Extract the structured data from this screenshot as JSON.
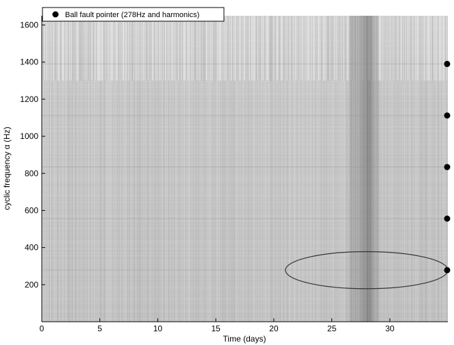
{
  "chart_data": {
    "type": "heatmap",
    "xlabel": "Time (days)",
    "ylabel": "cyclic frequency α (Hz)",
    "xlim": [
      0,
      35
    ],
    "ylim": [
      0,
      1650
    ],
    "x_ticks": [
      0,
      5,
      10,
      15,
      20,
      25,
      30
    ],
    "y_ticks": [
      200,
      400,
      600,
      800,
      1000,
      1200,
      1400,
      1600
    ],
    "colormap": "grayscale",
    "dark_time_band_days": [
      26.5,
      29
    ],
    "legend": {
      "placement": "top-left",
      "entries": [
        {
          "marker": "filled-circle",
          "label": "Ball fault pointer (278Hz and harmonics)"
        }
      ]
    },
    "series": [
      {
        "name": "Ball fault pointer (278Hz and harmonics)",
        "type": "scatter",
        "marker": "filled-circle",
        "x": [
          35,
          35,
          35,
          35,
          35
        ],
        "y": [
          278,
          556,
          834,
          1112,
          1390
        ]
      }
    ],
    "annotations": [
      {
        "type": "ellipse",
        "center": [
          28,
          278
        ],
        "radii": [
          7,
          100
        ]
      }
    ]
  },
  "colors": {
    "background": "#ffffff",
    "heatmap_base": "#c4c4c4",
    "marker": "#000000",
    "ellipse": "#333333",
    "axis": "#000000"
  }
}
